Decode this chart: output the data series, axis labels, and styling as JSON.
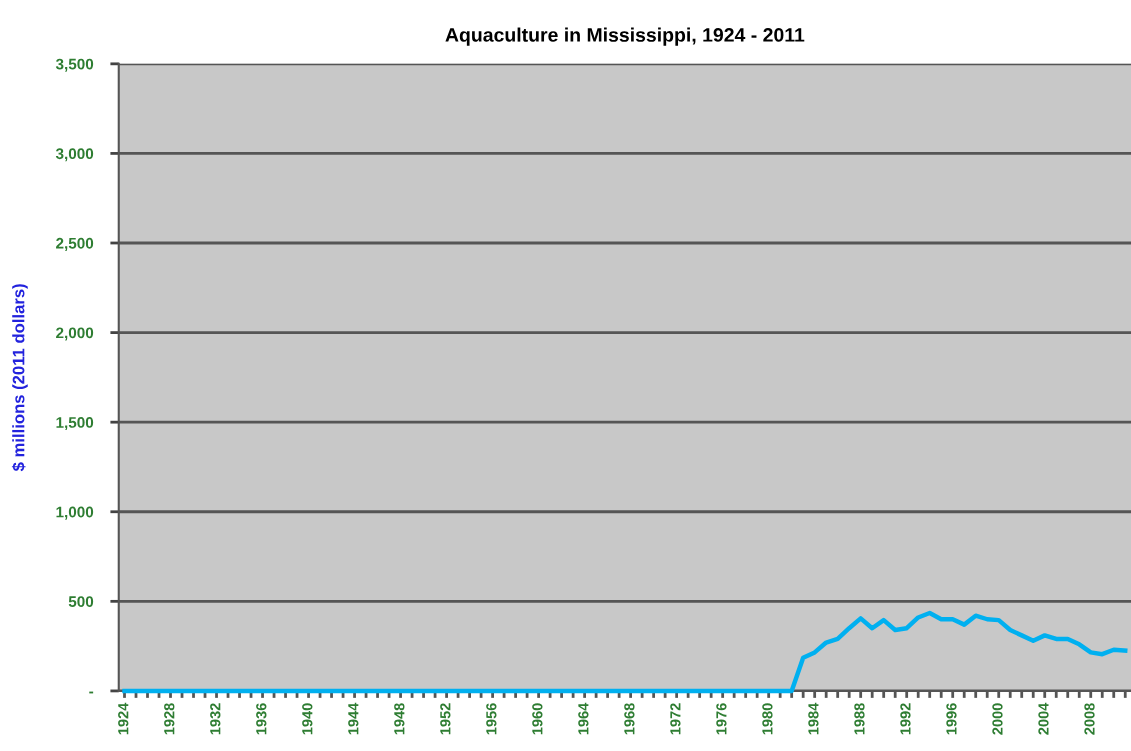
{
  "chart_data": {
    "type": "line",
    "title": "Aquaculture in Mississippi, 1924 - 2011",
    "ylabel": "$ millions (2011 dollars)",
    "categories": [
      "1924",
      null,
      null,
      null,
      "1928",
      null,
      null,
      null,
      "1932",
      null,
      null,
      null,
      "1936",
      null,
      null,
      null,
      "1940",
      null,
      null,
      null,
      "1944",
      null,
      null,
      null,
      "1948",
      null,
      null,
      null,
      "1952",
      null,
      null,
      null,
      "1956",
      null,
      null,
      null,
      "1960",
      null,
      null,
      null,
      "1964",
      null,
      null,
      null,
      "1968",
      null,
      null,
      null,
      "1972",
      null,
      null,
      null,
      "1976",
      null,
      null,
      null,
      "1980",
      null,
      null,
      null,
      "1984",
      null,
      null,
      null,
      "1988",
      null,
      null,
      null,
      "1992",
      null,
      null,
      null,
      "1996",
      null,
      null,
      null,
      "2000",
      null,
      null,
      null,
      "2004",
      null,
      null,
      null,
      "2008",
      null,
      null,
      null
    ],
    "series": [
      {
        "color": "#00b0f0",
        "values": [
          0,
          0,
          0,
          0,
          0,
          0,
          0,
          0,
          0,
          0,
          0,
          0,
          0,
          0,
          0,
          0,
          0,
          0,
          0,
          0,
          0,
          0,
          0,
          0,
          0,
          0,
          0,
          0,
          0,
          0,
          0,
          0,
          0,
          0,
          0,
          0,
          0,
          0,
          0,
          0,
          0,
          0,
          0,
          0,
          0,
          0,
          0,
          0,
          0,
          0,
          0,
          0,
          0,
          0,
          0,
          0,
          0,
          0,
          0,
          185,
          215,
          270,
          290,
          350,
          405,
          350,
          395,
          340,
          350,
          410,
          435,
          400,
          400,
          370,
          420,
          400,
          395,
          340,
          310,
          280,
          310,
          290,
          290,
          260,
          215,
          205,
          230,
          225
        ]
      }
    ],
    "ylim": [
      0,
      3500
    ],
    "yticks": [
      {
        "value": 0,
        "label": "-"
      },
      500,
      {
        "value": 1000,
        "label": "1,000"
      },
      {
        "value": 1500,
        "label": "1,500"
      },
      {
        "value": 2000,
        "label": "2,000"
      },
      {
        "value": 2500,
        "label": "2,500"
      },
      {
        "value": 3000,
        "label": "3,000"
      },
      {
        "value": 3500,
        "label": "3,500"
      }
    ],
    "grid": "y",
    "legend": false,
    "marker": "none",
    "line_style": "solid"
  }
}
